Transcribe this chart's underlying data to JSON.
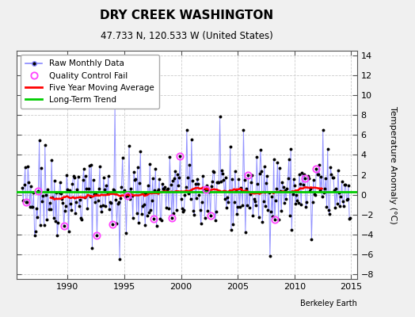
{
  "title": "DRY CREEK WASHINGTON",
  "subtitle": "47.733 N, 120.533 W (United States)",
  "ylabel": "Temperature Anomaly (°C)",
  "credit": "Berkeley Earth",
  "ylim": [
    -8.5,
    14.5
  ],
  "xlim": [
    1985.5,
    2015.5
  ],
  "yticks": [
    -8,
    -6,
    -4,
    -2,
    0,
    2,
    4,
    6,
    8,
    10,
    12,
    14
  ],
  "xticks": [
    1990,
    1995,
    2000,
    2005,
    2010,
    2015
  ],
  "bg_color": "#f0f0f0",
  "plot_bg_color": "#ffffff",
  "raw_line_color": "#8888ff",
  "raw_dot_color": "#000000",
  "moving_avg_color": "#ff0000",
  "trend_color": "#00cc00",
  "qc_fail_color": "#ff44ff",
  "long_term_trend_value": 0.3,
  "seed": 42
}
